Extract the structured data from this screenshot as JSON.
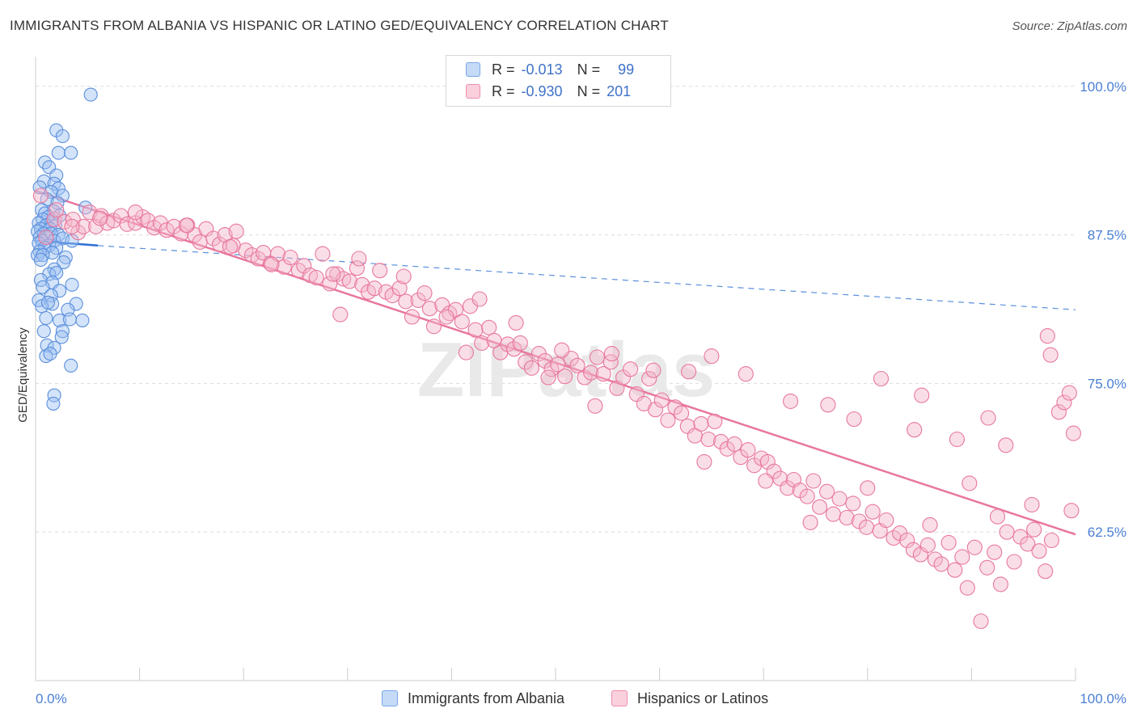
{
  "title": "IMMIGRANTS FROM ALBANIA VS HISPANIC OR LATINO GED/EQUIVALENCY CORRELATION CHART",
  "source": "Source: ZipAtlas.com",
  "watermark": "ZIPatlas",
  "legend": {
    "rows": [
      {
        "r_label": "R =",
        "r_value": "-0.013",
        "n_label": "N =",
        "n_value": "99",
        "color": "#9ec2f2"
      },
      {
        "r_label": "R =",
        "r_value": "-0.930",
        "n_label": "N =",
        "n_value": "201",
        "color": "#f5b5c9"
      }
    ]
  },
  "chart_data": {
    "type": "scatter",
    "xlabel": "",
    "ylabel": "GED/Equivalency",
    "xlim": [
      0,
      100
    ],
    "ylim": [
      50,
      102.5
    ],
    "x_tick_labels": [
      "0.0%",
      "100.0%"
    ],
    "y_ticks": [
      62.5,
      75.0,
      87.5,
      100.0
    ],
    "y_tick_labels": [
      "62.5%",
      "75.0%",
      "87.5%",
      "100.0%"
    ],
    "grid": true,
    "series": [
      {
        "name": "Immigrants from Albania",
        "color": "#5b8fdc",
        "fill": "#9ec2f2",
        "trend": {
          "x": [
            0,
            6
          ],
          "y": [
            87.0,
            86.6
          ],
          "dashed_extension": {
            "x": [
              6,
              100
            ],
            "y": [
              86.6,
              81.2
            ]
          }
        },
        "points": [
          [
            5.3,
            99.3
          ],
          [
            2.0,
            96.3
          ],
          [
            2.6,
            95.8
          ],
          [
            2.2,
            94.4
          ],
          [
            3.4,
            94.4
          ],
          [
            0.9,
            93.6
          ],
          [
            1.3,
            93.2
          ],
          [
            2.0,
            92.5
          ],
          [
            0.8,
            92.0
          ],
          [
            1.8,
            91.8
          ],
          [
            0.4,
            91.5
          ],
          [
            2.2,
            91.4
          ],
          [
            1.5,
            91.1
          ],
          [
            2.6,
            90.8
          ],
          [
            1.1,
            90.5
          ],
          [
            2.1,
            90.2
          ],
          [
            4.8,
            89.8
          ],
          [
            0.6,
            89.6
          ],
          [
            1.7,
            89.5
          ],
          [
            0.9,
            89.3
          ],
          [
            1.2,
            89.0
          ],
          [
            2.3,
            89.1
          ],
          [
            0.7,
            88.8
          ],
          [
            1.6,
            88.7
          ],
          [
            0.3,
            88.5
          ],
          [
            1.0,
            88.3
          ],
          [
            1.9,
            88.3
          ],
          [
            0.5,
            88.0
          ],
          [
            1.4,
            88.0
          ],
          [
            0.2,
            87.8
          ],
          [
            0.8,
            87.6
          ],
          [
            1.5,
            87.6
          ],
          [
            2.2,
            87.5
          ],
          [
            0.4,
            87.3
          ],
          [
            1.1,
            87.3
          ],
          [
            0.6,
            87.0
          ],
          [
            1.8,
            87.0
          ],
          [
            2.6,
            87.2
          ],
          [
            3.5,
            87.0
          ],
          [
            0.3,
            86.8
          ],
          [
            1.3,
            86.6
          ],
          [
            0.9,
            86.4
          ],
          [
            2.0,
            86.4
          ],
          [
            0.4,
            86.1
          ],
          [
            1.6,
            86.0
          ],
          [
            0.2,
            85.8
          ],
          [
            0.7,
            85.8
          ],
          [
            2.9,
            85.6
          ],
          [
            0.5,
            85.4
          ],
          [
            2.7,
            85.2
          ],
          [
            1.8,
            84.6
          ],
          [
            1.3,
            84.2
          ],
          [
            2.0,
            84.3
          ],
          [
            0.5,
            83.7
          ],
          [
            1.6,
            83.5
          ],
          [
            3.5,
            83.3
          ],
          [
            0.7,
            83.1
          ],
          [
            2.3,
            82.8
          ],
          [
            1.5,
            82.4
          ],
          [
            0.3,
            82.0
          ],
          [
            1.6,
            81.7
          ],
          [
            3.9,
            81.7
          ],
          [
            0.6,
            81.5
          ],
          [
            1.2,
            81.8
          ],
          [
            3.1,
            81.2
          ],
          [
            1.0,
            80.5
          ],
          [
            2.3,
            80.3
          ],
          [
            3.3,
            80.4
          ],
          [
            4.5,
            80.3
          ],
          [
            0.8,
            79.4
          ],
          [
            2.6,
            79.4
          ],
          [
            2.5,
            78.9
          ],
          [
            1.1,
            78.2
          ],
          [
            1.8,
            78.0
          ],
          [
            1.0,
            77.3
          ],
          [
            1.4,
            77.5
          ],
          [
            3.4,
            76.5
          ],
          [
            1.8,
            74.0
          ],
          [
            1.7,
            73.3
          ]
        ]
      },
      {
        "name": "Hispanics or Latinos",
        "color": "#e8779d",
        "fill": "#f5b5c9",
        "trend": {
          "x": [
            0,
            100
          ],
          "y": [
            91.2,
            62.3
          ]
        },
        "points": [
          [
            0.5,
            90.8
          ],
          [
            1.0,
            87.3
          ],
          [
            1.8,
            88.8
          ],
          [
            2.8,
            88.6
          ],
          [
            3.6,
            88.8
          ],
          [
            4.1,
            87.7
          ],
          [
            4.6,
            88.2
          ],
          [
            5.2,
            89.4
          ],
          [
            5.8,
            88.2
          ],
          [
            6.3,
            89.1
          ],
          [
            6.9,
            88.5
          ],
          [
            7.5,
            88.7
          ],
          [
            8.2,
            89.1
          ],
          [
            8.8,
            88.4
          ],
          [
            9.6,
            88.5
          ],
          [
            10.3,
            89.0
          ],
          [
            10.8,
            88.7
          ],
          [
            11.4,
            88.1
          ],
          [
            12.0,
            88.5
          ],
          [
            12.6,
            87.9
          ],
          [
            13.3,
            88.2
          ],
          [
            14.0,
            87.6
          ],
          [
            14.6,
            88.3
          ],
          [
            15.3,
            87.5
          ],
          [
            15.8,
            86.9
          ],
          [
            16.4,
            88.0
          ],
          [
            17.1,
            87.2
          ],
          [
            17.7,
            86.7
          ],
          [
            18.2,
            87.5
          ],
          [
            19.0,
            86.6
          ],
          [
            19.3,
            87.8
          ],
          [
            20.2,
            86.2
          ],
          [
            20.8,
            85.8
          ],
          [
            21.4,
            85.5
          ],
          [
            21.9,
            86.0
          ],
          [
            22.6,
            85.1
          ],
          [
            23.3,
            85.9
          ],
          [
            23.9,
            84.8
          ],
          [
            24.5,
            85.6
          ],
          [
            25.3,
            84.5
          ],
          [
            25.8,
            84.9
          ],
          [
            26.4,
            84.1
          ],
          [
            27.0,
            83.9
          ],
          [
            27.6,
            85.9
          ],
          [
            28.3,
            83.4
          ],
          [
            29.0,
            84.2
          ],
          [
            29.6,
            83.8
          ],
          [
            30.2,
            83.6
          ],
          [
            30.9,
            84.7
          ],
          [
            31.4,
            83.3
          ],
          [
            32.0,
            82.7
          ],
          [
            32.6,
            83.0
          ],
          [
            33.1,
            84.5
          ],
          [
            33.7,
            82.7
          ],
          [
            34.3,
            82.4
          ],
          [
            35.0,
            83.0
          ],
          [
            35.6,
            81.9
          ],
          [
            36.2,
            80.6
          ],
          [
            36.8,
            82.0
          ],
          [
            37.4,
            82.6
          ],
          [
            37.9,
            81.3
          ],
          [
            38.3,
            79.8
          ],
          [
            39.1,
            81.6
          ],
          [
            39.8,
            80.9
          ],
          [
            40.4,
            81.2
          ],
          [
            41.0,
            80.2
          ],
          [
            41.8,
            81.5
          ],
          [
            42.3,
            79.5
          ],
          [
            42.9,
            78.4
          ],
          [
            43.6,
            79.7
          ],
          [
            44.1,
            78.6
          ],
          [
            44.7,
            77.6
          ],
          [
            45.4,
            78.3
          ],
          [
            46.0,
            77.9
          ],
          [
            46.6,
            78.4
          ],
          [
            47.1,
            76.8
          ],
          [
            47.7,
            76.3
          ],
          [
            48.4,
            77.5
          ],
          [
            49.0,
            76.9
          ],
          [
            49.6,
            76.2
          ],
          [
            50.2,
            76.6
          ],
          [
            50.9,
            75.6
          ],
          [
            51.5,
            77.1
          ],
          [
            52.1,
            76.5
          ],
          [
            52.8,
            75.5
          ],
          [
            53.4,
            75.9
          ],
          [
            54.0,
            77.2
          ],
          [
            54.6,
            75.8
          ],
          [
            55.3,
            76.8
          ],
          [
            55.9,
            74.6
          ],
          [
            56.5,
            75.5
          ],
          [
            57.2,
            76.2
          ],
          [
            57.8,
            74.1
          ],
          [
            58.5,
            73.3
          ],
          [
            59.0,
            75.4
          ],
          [
            59.6,
            72.8
          ],
          [
            60.2,
            73.6
          ],
          [
            60.8,
            71.9
          ],
          [
            61.5,
            73.0
          ],
          [
            62.1,
            72.5
          ],
          [
            62.7,
            71.4
          ],
          [
            63.4,
            70.6
          ],
          [
            64.0,
            71.6
          ],
          [
            64.7,
            70.3
          ],
          [
            65.3,
            71.8
          ],
          [
            65.9,
            70.1
          ],
          [
            66.5,
            69.5
          ],
          [
            67.2,
            69.9
          ],
          [
            67.8,
            68.8
          ],
          [
            68.5,
            69.4
          ],
          [
            69.1,
            68.1
          ],
          [
            69.8,
            68.7
          ],
          [
            70.4,
            68.4
          ],
          [
            71.0,
            67.6
          ],
          [
            71.6,
            67.0
          ],
          [
            72.3,
            66.2
          ],
          [
            72.9,
            66.9
          ],
          [
            73.5,
            66.0
          ],
          [
            74.2,
            65.5
          ],
          [
            74.8,
            66.8
          ],
          [
            75.4,
            64.6
          ],
          [
            76.1,
            65.9
          ],
          [
            76.7,
            64.0
          ],
          [
            77.3,
            65.3
          ],
          [
            78.0,
            63.7
          ],
          [
            78.6,
            64.9
          ],
          [
            79.2,
            63.4
          ],
          [
            79.9,
            62.9
          ],
          [
            80.5,
            64.2
          ],
          [
            81.2,
            62.6
          ],
          [
            81.8,
            63.5
          ],
          [
            82.5,
            62.0
          ],
          [
            83.1,
            62.4
          ],
          [
            83.8,
            61.8
          ],
          [
            84.4,
            61.0
          ],
          [
            85.1,
            60.6
          ],
          [
            85.8,
            61.4
          ],
          [
            86.5,
            60.2
          ],
          [
            87.1,
            59.8
          ],
          [
            87.8,
            61.6
          ],
          [
            88.4,
            59.3
          ],
          [
            89.1,
            60.4
          ],
          [
            89.6,
            57.8
          ],
          [
            90.3,
            61.2
          ],
          [
            90.9,
            55.0
          ],
          [
            91.5,
            59.5
          ],
          [
            92.2,
            60.8
          ],
          [
            92.8,
            58.1
          ],
          [
            93.4,
            62.5
          ],
          [
            94.1,
            60.0
          ],
          [
            94.7,
            62.1
          ],
          [
            95.4,
            61.5
          ],
          [
            96.0,
            62.7
          ],
          [
            96.5,
            60.9
          ],
          [
            97.1,
            59.2
          ],
          [
            97.7,
            61.8
          ],
          [
            98.4,
            72.6
          ],
          [
            98.9,
            73.4
          ],
          [
            99.4,
            74.2
          ],
          [
            99.8,
            70.8
          ],
          [
            99.6,
            64.3
          ],
          [
            97.3,
            79.0
          ],
          [
            97.6,
            77.4
          ],
          [
            93.3,
            69.8
          ],
          [
            91.6,
            72.1
          ],
          [
            88.6,
            70.3
          ],
          [
            84.5,
            71.1
          ],
          [
            81.3,
            75.4
          ],
          [
            76.2,
            73.2
          ],
          [
            72.6,
            73.5
          ],
          [
            68.3,
            75.8
          ],
          [
            65.0,
            77.3
          ],
          [
            62.8,
            76.0
          ],
          [
            59.4,
            76.1
          ],
          [
            55.4,
            77.5
          ],
          [
            50.6,
            77.8
          ],
          [
            46.2,
            80.1
          ],
          [
            42.7,
            82.1
          ],
          [
            39.5,
            80.6
          ],
          [
            35.4,
            84.0
          ],
          [
            31.1,
            85.5
          ],
          [
            28.6,
            84.2
          ],
          [
            22.7,
            85.0
          ],
          [
            18.7,
            86.5
          ],
          [
            14.5,
            88.3
          ],
          [
            9.6,
            89.4
          ],
          [
            6.2,
            88.9
          ],
          [
            3.5,
            88.2
          ],
          [
            2.0,
            89.6
          ],
          [
            29.3,
            80.8
          ],
          [
            41.4,
            77.6
          ],
          [
            49.3,
            75.5
          ],
          [
            53.8,
            73.1
          ],
          [
            64.3,
            68.4
          ],
          [
            70.2,
            66.8
          ],
          [
            74.5,
            63.3
          ],
          [
            80.0,
            66.2
          ],
          [
            86.0,
            63.1
          ],
          [
            89.8,
            66.6
          ],
          [
            92.5,
            63.8
          ],
          [
            95.8,
            64.8
          ],
          [
            85.2,
            74.0
          ],
          [
            78.7,
            72.0
          ]
        ]
      }
    ]
  }
}
